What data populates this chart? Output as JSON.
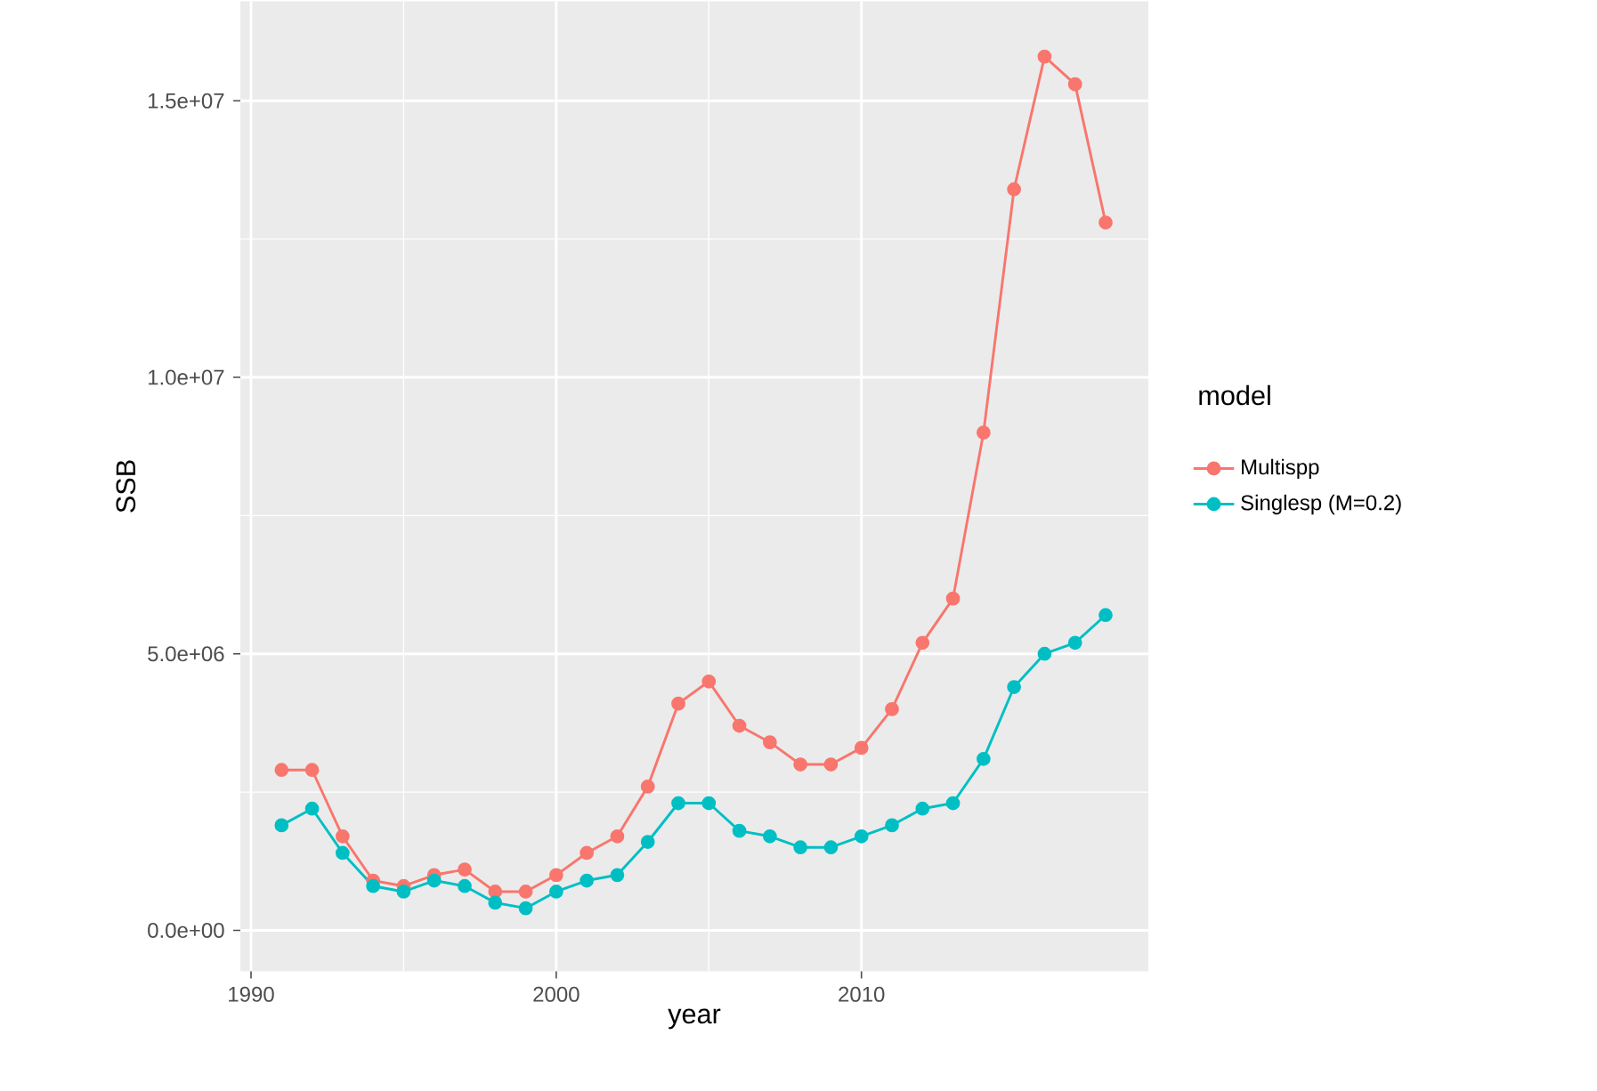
{
  "chart_data": {
    "type": "line",
    "xlabel": "year",
    "ylabel": "SSB",
    "legend_title": "model",
    "x": [
      1991,
      1992,
      1993,
      1994,
      1995,
      1996,
      1997,
      1998,
      1999,
      2000,
      2001,
      2002,
      2003,
      2004,
      2005,
      2006,
      2007,
      2008,
      2009,
      2010,
      2011,
      2012,
      2013,
      2014,
      2015,
      2016,
      2017,
      2018
    ],
    "series": [
      {
        "name": "Multispp",
        "color": "#f8766d",
        "values": [
          2900000,
          2900000,
          1700000,
          900000,
          800000,
          1000000,
          1100000,
          700000,
          700000,
          1000000,
          1400000,
          1700000,
          2600000,
          4100000,
          4500000,
          3700000,
          3400000,
          3000000,
          3000000,
          3300000,
          4000000,
          5200000,
          6000000,
          9000000,
          13400000,
          15800000,
          15300000,
          12800000
        ]
      },
      {
        "name": "Singlesp (M=0.2)",
        "color": "#00bfc4",
        "values": [
          1900000,
          2200000,
          1400000,
          800000,
          700000,
          900000,
          800000,
          500000,
          400000,
          700000,
          900000,
          1000000,
          1600000,
          2300000,
          2300000,
          1800000,
          1700000,
          1500000,
          1500000,
          1700000,
          1900000,
          2200000,
          2300000,
          3100000,
          4400000,
          5000000,
          5200000,
          5700000
        ]
      }
    ],
    "xlim": [
      1989.65,
      2019.4
    ],
    "ylim": [
      -740000,
      16800000
    ],
    "xticks": [
      1990,
      2000,
      2010
    ],
    "yticks": [
      {
        "value": 0,
        "label": "0.0e+00"
      },
      {
        "value": 5000000,
        "label": "5.0e+06"
      },
      {
        "value": 10000000,
        "label": "1.0e+07"
      },
      {
        "value": 15000000,
        "label": "1.5e+07"
      }
    ],
    "grid": true,
    "legend": "right",
    "marker": "circle",
    "line_style": "solid"
  }
}
